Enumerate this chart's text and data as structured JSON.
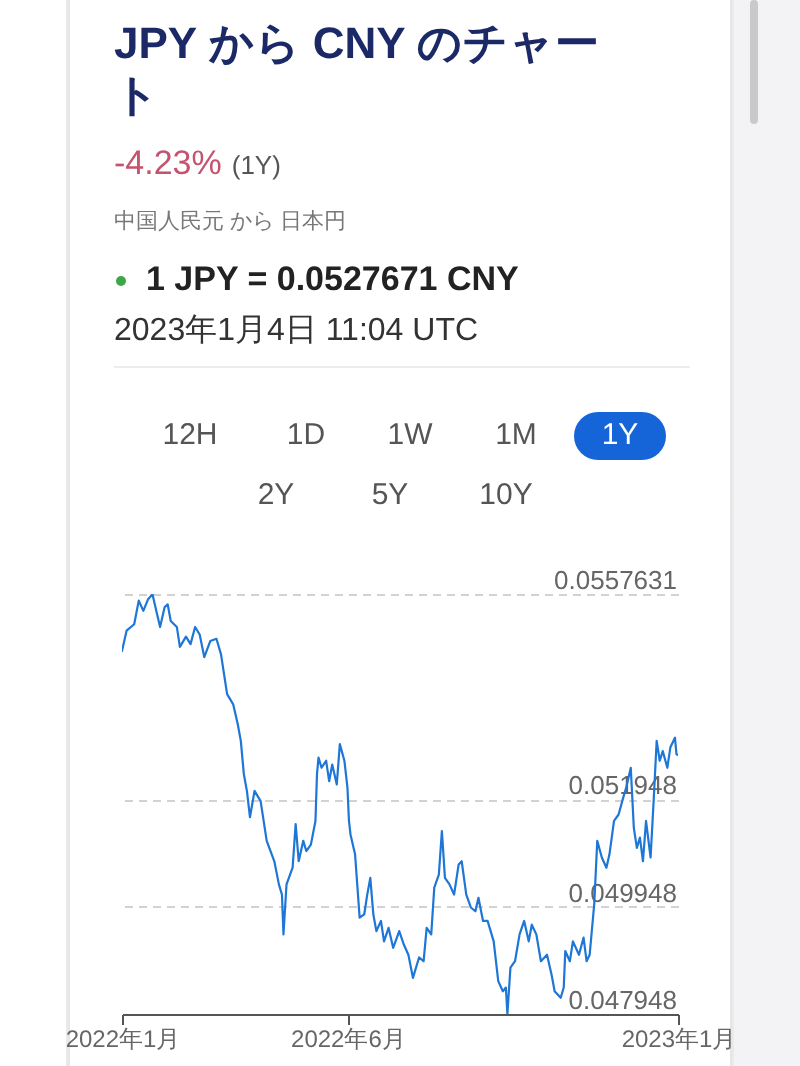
{
  "chart_data": {
    "type": "line",
    "title": "JPY から CNY のチャート",
    "annotations": [
      "-4.23%",
      "(1Y)",
      "中国人民元 から 日本円",
      "1 JPY = 0.0527671 CNY",
      "2023年1月4日 11:04 UTC",
      "12H",
      "1D",
      "1W",
      "1M",
      "1Y",
      "2Y",
      "5Y",
      "10Y"
    ],
    "x": [
      "2022-01-04",
      "2022-01-07",
      "2022-01-12",
      "2022-01-15",
      "2022-01-18",
      "2022-01-21",
      "2022-01-24",
      "2022-01-27",
      "2022-01-29",
      "2022-02-01",
      "2022-02-03",
      "2022-02-05",
      "2022-02-09",
      "2022-02-11",
      "2022-02-15",
      "2022-02-18",
      "2022-02-21",
      "2022-02-24",
      "2022-02-27",
      "2022-03-03",
      "2022-03-07",
      "2022-03-10",
      "2022-03-12",
      "2022-03-14",
      "2022-03-18",
      "2022-03-21",
      "2022-03-23",
      "2022-03-25",
      "2022-03-27",
      "2022-03-29",
      "2022-04-01",
      "2022-04-05",
      "2022-04-09",
      "2022-04-14",
      "2022-04-17",
      "2022-04-19",
      "2022-04-20",
      "2022-04-22",
      "2022-04-26",
      "2022-04-28",
      "2022-04-30",
      "2022-05-03",
      "2022-05-05",
      "2022-05-08",
      "2022-05-11",
      "2022-05-12",
      "2022-05-13",
      "2022-05-15",
      "2022-05-18",
      "2022-05-20",
      "2022-05-22",
      "2022-05-25",
      "2022-05-27",
      "2022-05-30",
      "2022-06-01",
      "2022-06-02",
      "2022-06-03",
      "2022-06-06",
      "2022-06-09",
      "2022-06-12",
      "2022-06-14",
      "2022-06-16",
      "2022-06-18",
      "2022-06-20",
      "2022-06-23",
      "2022-06-25",
      "2022-06-28",
      "2022-07-01",
      "2022-07-05",
      "2022-07-08",
      "2022-07-11",
      "2022-07-14",
      "2022-07-18",
      "2022-07-21",
      "2022-07-23",
      "2022-07-26",
      "2022-07-28",
      "2022-07-31",
      "2022-08-02",
      "2022-08-04",
      "2022-08-07",
      "2022-08-10",
      "2022-08-13",
      "2022-08-15",
      "2022-08-18",
      "2022-08-21",
      "2022-08-24",
      "2022-08-26",
      "2022-08-29",
      "2022-09-01",
      "2022-09-05",
      "2022-09-08",
      "2022-09-11",
      "2022-09-13",
      "2022-09-14",
      "2022-09-16",
      "2022-09-19",
      "2022-09-22",
      "2022-09-25",
      "2022-09-28",
      "2022-09-30",
      "2022-10-03",
      "2022-10-06",
      "2022-10-10",
      "2022-10-13",
      "2022-10-15",
      "2022-10-19",
      "2022-10-21",
      "2022-10-22",
      "2022-10-25",
      "2022-10-27",
      "2022-10-31",
      "2022-11-03",
      "2022-11-05",
      "2022-11-07",
      "2022-11-10",
      "2022-11-12",
      "2022-11-15",
      "2022-11-18",
      "2022-11-20",
      "2022-11-23",
      "2022-11-26",
      "2022-11-29",
      "2022-12-01",
      "2022-12-04",
      "2022-12-06",
      "2022-12-08",
      "2022-12-10",
      "2022-12-12",
      "2022-12-14",
      "2022-12-17",
      "2022-12-19",
      "2022-12-21",
      "2022-12-23",
      "2022-12-25",
      "2022-12-28",
      "2022-12-30",
      "2023-01-02",
      "2023-01-03",
      "2023-01-04"
    ],
    "values": [
      0.0547,
      0.05508,
      0.0552,
      0.05564,
      0.05545,
      0.05566,
      0.05576,
      0.05539,
      0.05515,
      0.05552,
      0.05557,
      0.05526,
      0.05515,
      0.05478,
      0.05497,
      0.05483,
      0.05515,
      0.05501,
      0.05459,
      0.05489,
      0.05493,
      0.05464,
      0.05427,
      0.0539,
      0.05371,
      0.05334,
      0.05303,
      0.05241,
      0.0521,
      0.05161,
      0.0521,
      0.05191,
      0.05117,
      0.05079,
      0.05036,
      0.05017,
      0.04943,
      0.05036,
      0.05067,
      0.05148,
      0.05079,
      0.05117,
      0.05098,
      0.0511,
      0.05154,
      0.05241,
      0.05272,
      0.05253,
      0.05266,
      0.05228,
      0.05259,
      0.05222,
      0.05297,
      0.05266,
      0.05216,
      0.05154,
      0.05129,
      0.05092,
      0.04974,
      0.0498,
      0.05017,
      0.05048,
      0.0498,
      0.04949,
      0.04968,
      0.0493,
      0.04955,
      0.04918,
      0.04949,
      0.04924,
      0.04905,
      0.04862,
      0.049,
      0.04893,
      0.04955,
      0.04943,
      0.0503,
      0.05054,
      0.05135,
      0.05048,
      0.05036,
      0.05017,
      0.05073,
      0.05079,
      0.05017,
      0.04993,
      0.04986,
      0.05011,
      0.04968,
      0.04968,
      0.0493,
      0.04856,
      0.04837,
      0.04844,
      0.04795,
      0.04881,
      0.04893,
      0.04943,
      0.04968,
      0.0493,
      0.04961,
      0.04943,
      0.04893,
      0.04905,
      0.04868,
      0.04837,
      0.04825,
      0.04844,
      0.04912,
      0.04893,
      0.0493,
      0.04905,
      0.04937,
      0.04893,
      0.04905,
      0.04999,
      0.05117,
      0.05086,
      0.05067,
      0.05092,
      0.05154,
      0.05166,
      0.05197,
      0.05216,
      0.05253,
      0.05141,
      0.05104,
      0.05123,
      0.05079,
      0.05154,
      0.05086,
      0.05191,
      0.05303,
      0.05266,
      0.05284,
      0.05253,
      0.05291,
      0.05309,
      0.05278,
      0.05277
    ],
    "color": "#1e76d6",
    "xlim": [
      "2022-01-04",
      "2023-01-04"
    ],
    "xticks": [
      {
        "value": "2022-01-04",
        "label": "2022年1月"
      },
      {
        "value": "2022-06-01",
        "label": "2022年6月"
      },
      {
        "value": "2023-01-04",
        "label": "2023年1月"
      }
    ],
    "ylim": [
      0.047948,
      0.0557631
    ],
    "yticks": [
      0.047948,
      0.049948,
      0.051948,
      0.0557631
    ],
    "grid": "y"
  }
}
